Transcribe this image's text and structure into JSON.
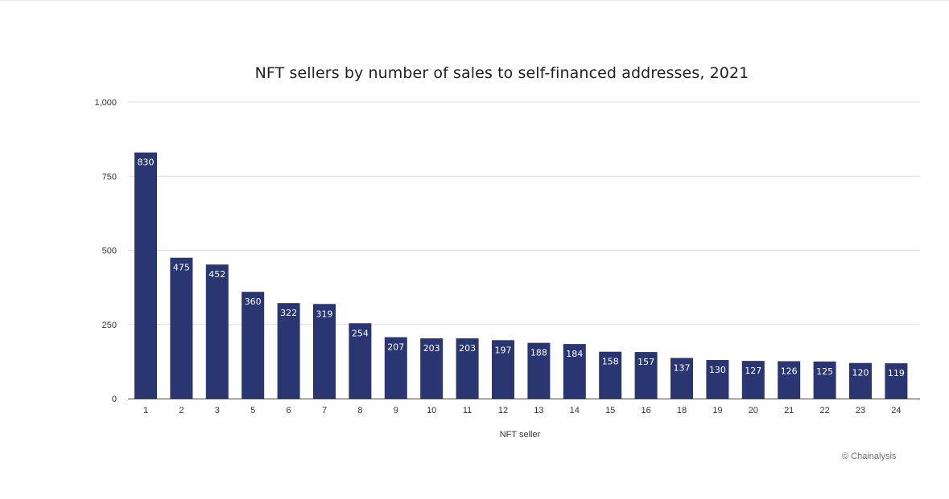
{
  "chart_data": {
    "type": "bar",
    "title": "NFT sellers by number of sales to self-financed addresses, 2021",
    "xlabel": "NFT seller",
    "ylabel": "",
    "categories": [
      "1",
      "2",
      "3",
      "5",
      "6",
      "7",
      "8",
      "9",
      "10",
      "11",
      "12",
      "13",
      "14",
      "15",
      "16",
      "18",
      "19",
      "20",
      "21",
      "22",
      "23",
      "24"
    ],
    "values": [
      830,
      475,
      452,
      360,
      322,
      319,
      254,
      207,
      203,
      203,
      197,
      188,
      184,
      158,
      157,
      137,
      130,
      127,
      126,
      125,
      120,
      119
    ],
    "ylim": [
      0,
      1000
    ],
    "yticks": [
      0,
      250,
      500,
      750,
      1000
    ],
    "ytick_labels": [
      "0",
      "250",
      "500",
      "750",
      "1,000"
    ],
    "grid": true,
    "legend": "none",
    "bar_color": "#2a3671",
    "source": "© Chainalysis"
  }
}
